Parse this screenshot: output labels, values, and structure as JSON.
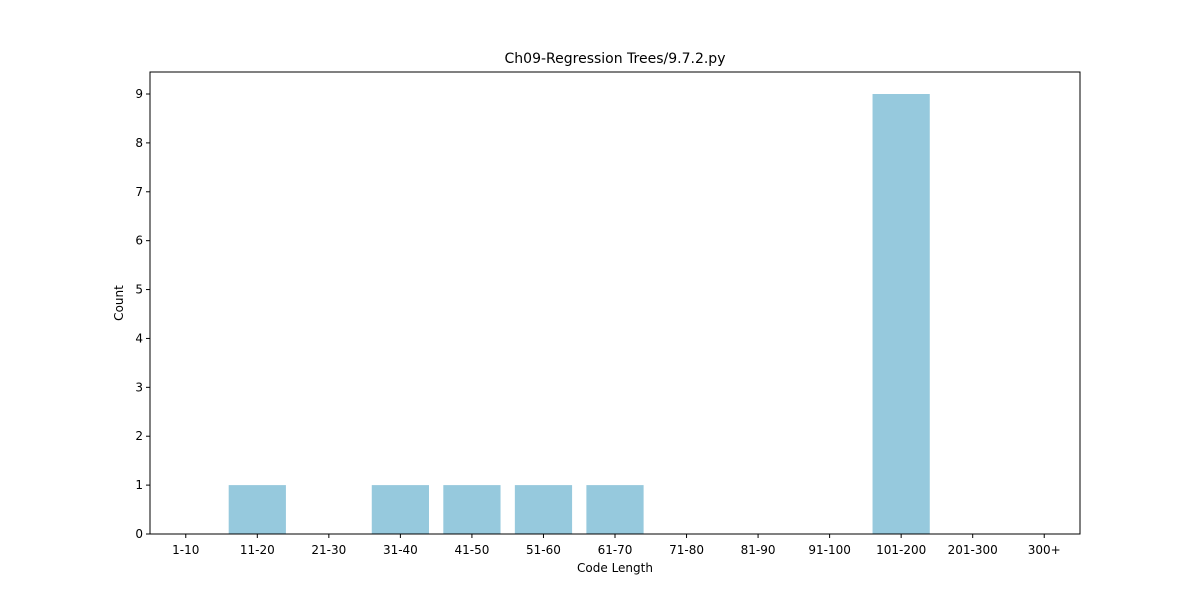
{
  "chart_data": {
    "type": "bar",
    "title": "Ch09-Regression Trees/9.7.2.py",
    "xlabel": "Code Length",
    "ylabel": "Count",
    "categories": [
      "1-10",
      "11-20",
      "21-30",
      "31-40",
      "41-50",
      "51-60",
      "61-70",
      "71-80",
      "81-90",
      "91-100",
      "101-200",
      "201-300",
      "300+"
    ],
    "values": [
      0,
      1,
      0,
      1,
      1,
      1,
      1,
      0,
      0,
      0,
      9,
      0,
      0
    ],
    "ylim": [
      0,
      9.45
    ],
    "yticks": [
      0,
      1,
      2,
      3,
      4,
      5,
      6,
      7,
      8,
      9
    ],
    "bar_color": "#96c9dd",
    "grid": false,
    "legend": "none"
  }
}
